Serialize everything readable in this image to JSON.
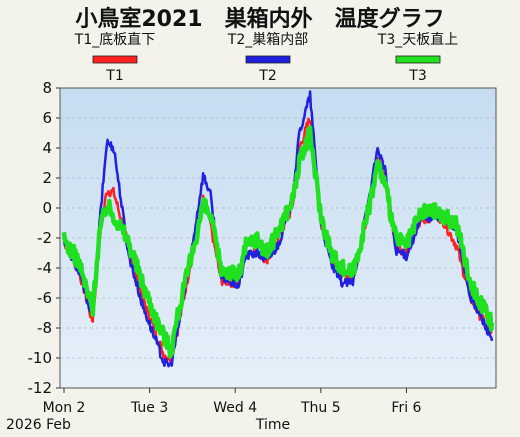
{
  "chart_data": {
    "type": "line",
    "title": "小鳥室2021　巣箱内外　温度グラフ",
    "header_labels": [
      "T1_底板直下",
      "T2_巣箱内部",
      "T3_天板直上"
    ],
    "xlabel": "Time",
    "x_tick_labels": [
      "Mon 2",
      "Tue 3",
      "Wed 4",
      "Thu 5",
      "Fri 6"
    ],
    "x_date_label": "2026 Feb",
    "x_range": [
      "2026-02-02T00:00",
      "2026-02-06T23:59"
    ],
    "ylim": [
      -12,
      8
    ],
    "y_ticks": [
      -12,
      -10,
      -8,
      -6,
      -4,
      -2,
      0,
      2,
      4,
      6,
      8
    ],
    "grid": true,
    "legend_placement": "top",
    "colors": {
      "T1": "#ff2020",
      "T2": "#2020e0",
      "T3": "#20e020",
      "plot_bg": "#cfe2f3"
    },
    "series": [
      {
        "name": "T1",
        "x": [
          "02 00:00",
          "02 04:00",
          "02 08:00",
          "02 10:00",
          "02 12:00",
          "02 14:00",
          "02 18:00",
          "02 22:00",
          "03 02:00",
          "03 04:00",
          "03 06:00",
          "03 08:00",
          "03 12:00",
          "03 15:00",
          "03 17:00",
          "03 20:00",
          "04 01:00",
          "04 03:00",
          "04 06:00",
          "04 09:00",
          "04 12:00",
          "04 16:00",
          "04 18:00",
          "04 21:00",
          "05 00:00",
          "05 03:00",
          "05 06:00",
          "05 09:00",
          "05 13:00",
          "05 16:00",
          "05 18:00",
          "05 21:00",
          "06 00:00",
          "06 04:00",
          "06 08:00",
          "06 10:00",
          "06 14:00",
          "06 18:00",
          "06 23:59"
        ],
        "values": [
          -2.2,
          -4,
          -7.6,
          -2,
          1.2,
          1,
          -2.5,
          -6,
          -8.5,
          -9.8,
          -10,
          -8,
          -3,
          0.5,
          -1,
          -4.8,
          -5,
          -3,
          -2.8,
          -3.5,
          -2,
          0,
          4,
          6,
          -1,
          -3.2,
          -4.4,
          -4.7,
          -0.5,
          3.3,
          2,
          -2.5,
          -3,
          -0.8,
          -0.5,
          -0.7,
          -2.5,
          -6,
          -8.6
        ]
      },
      {
        "name": "T2",
        "x": [
          "02 00:00",
          "02 04:00",
          "02 08:00",
          "02 10:00",
          "02 12:00",
          "02 14:00",
          "02 18:00",
          "02 22:00",
          "03 02:00",
          "03 04:00",
          "03 06:00",
          "03 08:00",
          "03 12:00",
          "03 15:00",
          "03 17:00",
          "03 20:00",
          "04 01:00",
          "04 03:00",
          "04 06:00",
          "04 09:00",
          "04 12:00",
          "04 16:00",
          "04 18:00",
          "04 21:00",
          "05 00:00",
          "05 03:00",
          "05 06:00",
          "05 09:00",
          "05 13:00",
          "05 16:00",
          "05 18:00",
          "05 21:00",
          "06 00:00",
          "06 04:00",
          "06 08:00",
          "06 10:00",
          "06 14:00",
          "06 18:00",
          "06 23:59"
        ],
        "values": [
          -2.1,
          -4.2,
          -7.2,
          -1,
          4.4,
          4,
          -3,
          -6.5,
          -9,
          -10.3,
          -10.5,
          -8,
          -2.5,
          2.2,
          1,
          -4.6,
          -5.2,
          -3.2,
          -3,
          -3.5,
          -2.5,
          0.5,
          5,
          7.5,
          -1,
          -3.8,
          -5,
          -5,
          0,
          4,
          2.5,
          -2.8,
          -3.2,
          -0.8,
          -0.5,
          -0.6,
          -1.5,
          -6,
          -8.7
        ]
      },
      {
        "name": "T3",
        "x": [
          "02 00:00",
          "02 04:00",
          "02 08:00",
          "02 10:00",
          "02 12:00",
          "02 14:00",
          "02 18:00",
          "02 22:00",
          "03 02:00",
          "03 04:00",
          "03 06:00",
          "03 08:00",
          "03 12:00",
          "03 15:00",
          "03 17:00",
          "03 20:00",
          "04 01:00",
          "04 03:00",
          "04 06:00",
          "04 09:00",
          "04 12:00",
          "04 16:00",
          "04 18:00",
          "04 21:00",
          "05 00:00",
          "05 03:00",
          "05 06:00",
          "05 09:00",
          "05 13:00",
          "05 16:00",
          "05 18:00",
          "05 21:00",
          "06 00:00",
          "06 04:00",
          "06 08:00",
          "06 10:00",
          "06 14:00",
          "06 18:00",
          "06 23:59"
        ],
        "values": [
          -2.1,
          -3.5,
          -6.8,
          -1.5,
          0.2,
          -0.5,
          -2.2,
          -5,
          -7.5,
          -8.5,
          -9.5,
          -7,
          -3,
          0.2,
          -0.5,
          -4,
          -4.5,
          -2.5,
          -2,
          -3,
          -1.5,
          0.5,
          3,
          5,
          -0.5,
          -3,
          -4,
          -4.3,
          -0.5,
          3,
          1.5,
          -2,
          -2.5,
          -0.3,
          -0.2,
          -0.5,
          -1,
          -5,
          -7.8
        ]
      }
    ]
  }
}
